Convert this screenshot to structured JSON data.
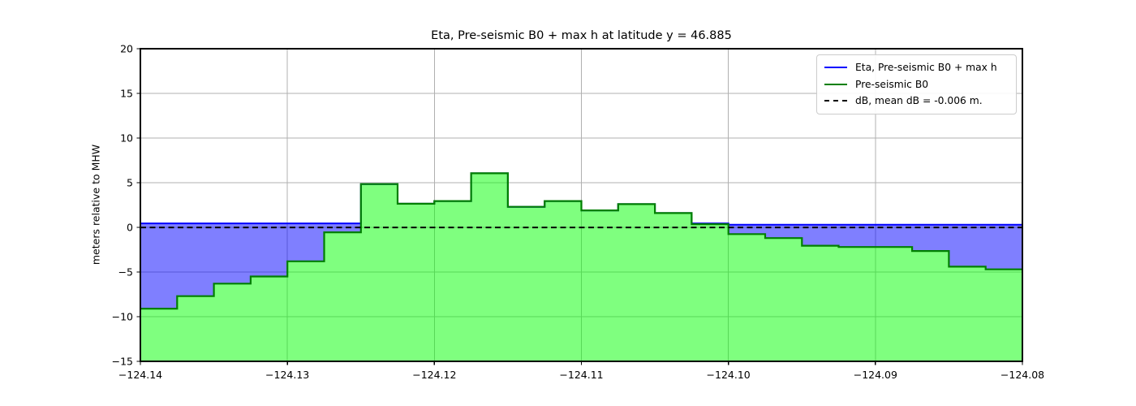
{
  "title": "Eta, Pre-seismic B0 + max h at latitude y = 46.885",
  "ylabel": "meters relative to MHW",
  "chart_data": {
    "type": "area",
    "title": "Eta, Pre-seismic B0 + max h at latitude y = 46.885",
    "xlabel": "",
    "ylabel": "meters relative to MHW",
    "xlim": [
      -124.14,
      -124.08
    ],
    "ylim": [
      -15,
      20
    ],
    "grid": true,
    "grid_color": "#b0b0b0",
    "x_ticks": [
      {
        "value": -124.14,
        "label": "−124.14"
      },
      {
        "value": -124.13,
        "label": "−124.13"
      },
      {
        "value": -124.12,
        "label": "−124.12"
      },
      {
        "value": -124.11,
        "label": "−124.11"
      },
      {
        "value": -124.1,
        "label": "−124.10"
      },
      {
        "value": -124.09,
        "label": "−124.09"
      },
      {
        "value": -124.08,
        "label": "−124.08"
      }
    ],
    "y_ticks": [
      {
        "value": 20,
        "label": "20"
      },
      {
        "value": 15,
        "label": "15"
      },
      {
        "value": 10,
        "label": "10"
      },
      {
        "value": 5,
        "label": "5"
      },
      {
        "value": 0,
        "label": "0"
      },
      {
        "value": -5,
        "label": "−5"
      },
      {
        "value": -10,
        "label": "−10"
      },
      {
        "value": -15,
        "label": "−15"
      }
    ],
    "cell_start": -124.14,
    "cell_width": 0.0025,
    "series": [
      {
        "name": "Eta, Pre-seismic B0 + max h",
        "style": "solid",
        "line_color": "#0000ff",
        "fill_color": "rgba(0,0,255,0.5)",
        "values": [
          0.45,
          0.45,
          0.45,
          0.45,
          0.45,
          0.45,
          4.85,
          2.65,
          2.95,
          6.05,
          2.3,
          2.95,
          1.9,
          2.6,
          1.6,
          0.45,
          0.3,
          0.3,
          0.3,
          0.3,
          0.3,
          0.3,
          0.3,
          0.3
        ]
      },
      {
        "name": "Pre-seismic B0",
        "style": "solid",
        "line_color": "#007f00",
        "fill_color": "rgba(0,255,0,0.5)",
        "values": [
          -9.1,
          -7.7,
          -6.3,
          -5.5,
          -3.8,
          -0.55,
          4.85,
          2.65,
          2.95,
          6.05,
          2.3,
          2.95,
          1.9,
          2.6,
          1.6,
          0.35,
          -0.75,
          -1.2,
          -2.05,
          -2.2,
          -2.2,
          -2.65,
          -4.4,
          -4.7
        ]
      },
      {
        "name": "dB, mean dB = -0.006 m.",
        "style": "dashed",
        "line_color": "#000000",
        "constant": -0.006
      }
    ],
    "legend": {
      "position": "upper right"
    }
  }
}
